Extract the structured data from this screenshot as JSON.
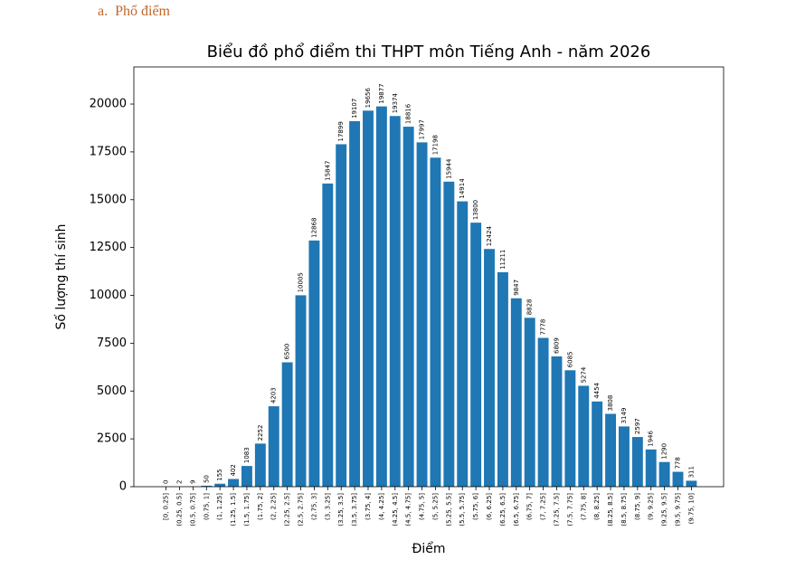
{
  "heading": "a.  Phổ điểm",
  "chart_data": {
    "type": "bar",
    "title": "Biểu đồ phổ điểm thi THPT môn Tiếng Anh - năm 2026",
    "x_label": "Điểm",
    "y_label": "Số lượng thí sinh",
    "color": "#1f77b4",
    "categories": [
      "[0, 0.25]",
      "(0.25, 0.5]",
      "(0.5, 0.75]",
      "(0.75, 1]",
      "(1, 1.25]",
      "(1.25, 1.5]",
      "(1.5, 1.75]",
      "(1.75, 2]",
      "(2, 2.25]",
      "(2.25, 2.5]",
      "(2.5, 2.75]",
      "(2.75, 3]",
      "(3, 3.25]",
      "(3.25, 3.5]",
      "(3.5, 3.75]",
      "(3.75, 4]",
      "(4, 4.25]",
      "(4.25, 4.5]",
      "(4.5, 4.75]",
      "(4.75, 5]",
      "(5, 5.25]",
      "(5.25, 5.5]",
      "(5.5, 5.75]",
      "(5.75, 6]",
      "(6, 6.25]",
      "(6.25, 6.5]",
      "(6.5, 6.75]",
      "(6.75, 7]",
      "(7, 7.25]",
      "(7.25, 7.5]",
      "(7.5, 7.75]",
      "(7.75, 8]",
      "(8, 8.25]",
      "(8.25, 8.5]",
      "(8.5, 8.75]",
      "(8.75, 9]",
      "(9, 9.25]",
      "(9.25, 9.5]",
      "(9.5, 9.75]",
      "(9.75, 10]"
    ],
    "values": [
      0,
      2,
      9,
      50,
      155,
      402,
      1083,
      2252,
      4203,
      6500,
      10005,
      12868,
      15847,
      17899,
      19107,
      19656,
      19877,
      19374,
      18816,
      17997,
      17198,
      15944,
      14914,
      13800,
      12424,
      11211,
      9847,
      8828,
      7778,
      6809,
      6085,
      5274,
      4454,
      3808,
      3149,
      2597,
      1946,
      1290,
      778,
      311
    ],
    "ylim": [
      0,
      21940
    ],
    "yticks": [
      0,
      2500,
      5000,
      7500,
      10000,
      12500,
      15000,
      17500,
      20000
    ],
    "grid": false
  }
}
